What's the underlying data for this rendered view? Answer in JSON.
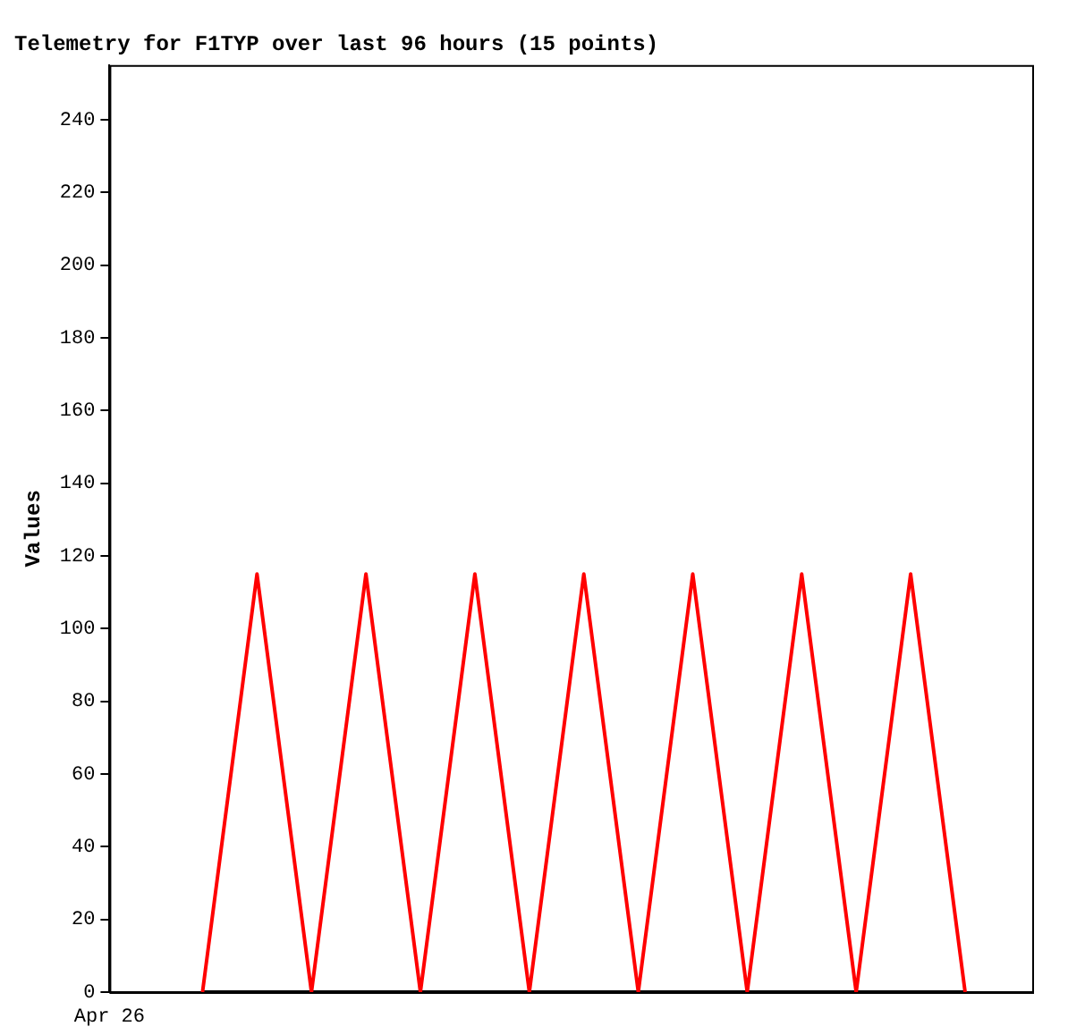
{
  "chart_data": {
    "type": "line",
    "title": "Telemetry for F1TYP over last 96 hours (15 points)",
    "ylabel": "Values",
    "categories": [
      null,
      null,
      null,
      null,
      null,
      null,
      null,
      null,
      null,
      null,
      null,
      null,
      null,
      null,
      null
    ],
    "annotations": [
      "Apr 26"
    ],
    "series": [
      {
        "color": "#ff0000",
        "values": [
          0,
          115,
          0,
          115,
          0,
          115,
          0,
          115,
          0,
          115,
          0,
          115,
          0,
          115,
          0
        ]
      },
      {
        "color": "#000000",
        "values": [
          0,
          0,
          0,
          0,
          0,
          0,
          0,
          0,
          0,
          0,
          0,
          0,
          0,
          0,
          0
        ]
      }
    ],
    "ylim": [
      0,
      255
    ],
    "yticks": [
      0,
      20,
      40,
      60,
      80,
      100,
      120,
      140,
      160,
      180,
      200,
      220,
      240
    ],
    "grid": false,
    "legend": false,
    "marker": "none",
    "line_style": "solid"
  }
}
